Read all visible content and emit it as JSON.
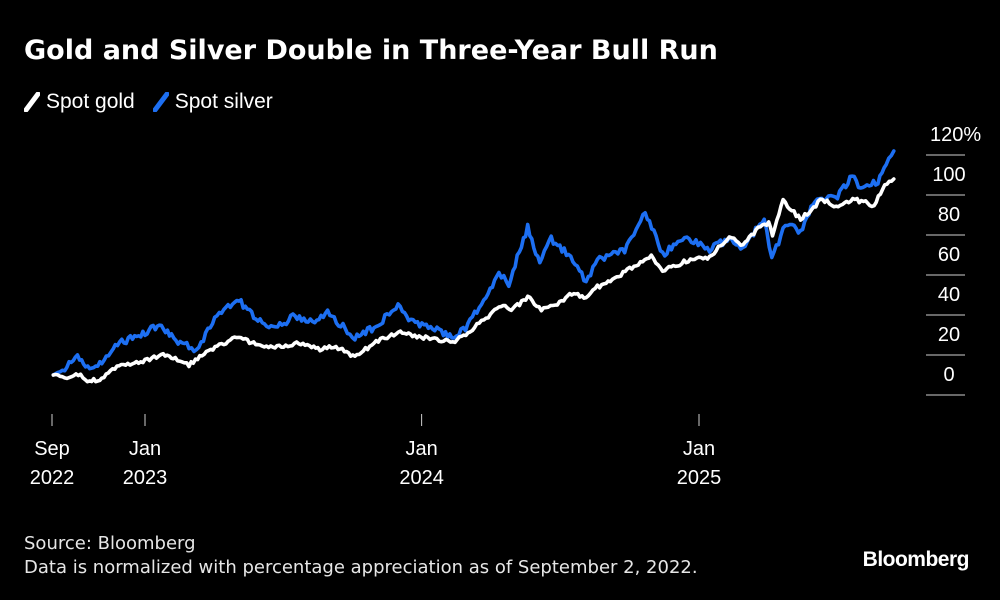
{
  "title": "Gold and Silver Double in Three-Year Bull Run",
  "legend": {
    "gold_label": "Spot gold",
    "silver_label": "Spot silver"
  },
  "colors": {
    "background": "#000000",
    "gold": "#ffffff",
    "silver": "#1d6ff2",
    "text": "#ffffff",
    "grid": "#cccccc"
  },
  "footer": {
    "source": "Source: Bloomberg",
    "note": "Data is normalized with percentage appreciation as of September 2, 2022."
  },
  "brand": "Bloomberg",
  "chart_data": {
    "type": "line",
    "title": "Gold and Silver Double in Three-Year Bull Run",
    "y_axis_position": "right",
    "ylim": [
      -10,
      120
    ],
    "y_ticks": [
      0,
      20,
      40,
      60,
      80,
      100,
      120
    ],
    "y_tick_labels": [
      "0",
      "20",
      "40",
      "60",
      "80",
      "100",
      "120%"
    ],
    "xlim": [
      "2022-09-02",
      "2025-09-20"
    ],
    "x_ticks": [
      {
        "date": "2022-09-02",
        "label": [
          "Sep",
          "2022"
        ]
      },
      {
        "date": "2023-01-01",
        "label": [
          "Jan",
          "2023"
        ]
      },
      {
        "date": "2024-01-01",
        "label": [
          "Jan",
          "2024"
        ]
      },
      {
        "date": "2025-01-01",
        "label": [
          "Jan",
          "2025"
        ]
      }
    ],
    "legend_position": "top-left",
    "grid": false,
    "series": [
      {
        "name": "Spot gold",
        "color": "#ffffff",
        "points": [
          [
            "2022-09-02",
            0
          ],
          [
            "2022-09-20",
            -2
          ],
          [
            "2022-10-05",
            0
          ],
          [
            "2022-10-20",
            -3
          ],
          [
            "2022-11-05",
            -2
          ],
          [
            "2022-11-25",
            4
          ],
          [
            "2022-12-15",
            6
          ],
          [
            "2023-01-01",
            7
          ],
          [
            "2023-01-25",
            10
          ],
          [
            "2023-02-10",
            8
          ],
          [
            "2023-02-28",
            5
          ],
          [
            "2023-03-20",
            11
          ],
          [
            "2023-04-15",
            16
          ],
          [
            "2023-05-05",
            19
          ],
          [
            "2023-05-30",
            15
          ],
          [
            "2023-06-30",
            14
          ],
          [
            "2023-07-20",
            16
          ],
          [
            "2023-08-20",
            13
          ],
          [
            "2023-09-10",
            14
          ],
          [
            "2023-10-05",
            9
          ],
          [
            "2023-10-30",
            16
          ],
          [
            "2023-12-04",
            22
          ],
          [
            "2023-12-20",
            20
          ],
          [
            "2024-01-15",
            18
          ],
          [
            "2024-02-14",
            17
          ],
          [
            "2024-03-08",
            23
          ],
          [
            "2024-04-01",
            30
          ],
          [
            "2024-04-12",
            35
          ],
          [
            "2024-05-01",
            33
          ],
          [
            "2024-05-20",
            39
          ],
          [
            "2024-06-07",
            33
          ],
          [
            "2024-07-01",
            36
          ],
          [
            "2024-07-17",
            41
          ],
          [
            "2024-08-05",
            38
          ],
          [
            "2024-08-20",
            44
          ],
          [
            "2024-09-20",
            50
          ],
          [
            "2024-10-30",
            60
          ],
          [
            "2024-11-14",
            52
          ],
          [
            "2024-12-15",
            57
          ],
          [
            "2025-01-15",
            59
          ],
          [
            "2025-02-10",
            69
          ],
          [
            "2025-02-28",
            65
          ],
          [
            "2025-03-20",
            73
          ],
          [
            "2025-04-03",
            76
          ],
          [
            "2025-04-08",
            70
          ],
          [
            "2025-04-22",
            87
          ],
          [
            "2025-05-15",
            78
          ],
          [
            "2025-06-13",
            88
          ],
          [
            "2025-07-01",
            84
          ],
          [
            "2025-07-23",
            88
          ],
          [
            "2025-08-20",
            85
          ],
          [
            "2025-09-03",
            95
          ],
          [
            "2025-09-15",
            98
          ]
        ]
      },
      {
        "name": "Spot silver",
        "color": "#1d6ff2",
        "points": [
          [
            "2022-09-02",
            0
          ],
          [
            "2022-09-20",
            4
          ],
          [
            "2022-10-04",
            10
          ],
          [
            "2022-10-20",
            2
          ],
          [
            "2022-11-05",
            6
          ],
          [
            "2022-11-20",
            14
          ],
          [
            "2022-12-10",
            18
          ],
          [
            "2023-01-01",
            21
          ],
          [
            "2023-01-20",
            25
          ],
          [
            "2023-02-05",
            19
          ],
          [
            "2023-02-28",
            14
          ],
          [
            "2023-03-10",
            12
          ],
          [
            "2023-03-31",
            26
          ],
          [
            "2023-04-15",
            34
          ],
          [
            "2023-05-05",
            37
          ],
          [
            "2023-05-30",
            27
          ],
          [
            "2023-06-25",
            24
          ],
          [
            "2023-07-18",
            30
          ],
          [
            "2023-08-10",
            26
          ],
          [
            "2023-08-30",
            31
          ],
          [
            "2023-09-25",
            22
          ],
          [
            "2023-10-05",
            18
          ],
          [
            "2023-10-30",
            24
          ],
          [
            "2023-12-01",
            34
          ],
          [
            "2023-12-15",
            28
          ],
          [
            "2024-01-10",
            24
          ],
          [
            "2024-02-10",
            19
          ],
          [
            "2024-02-28",
            23
          ],
          [
            "2024-03-20",
            36
          ],
          [
            "2024-04-12",
            50
          ],
          [
            "2024-04-25",
            46
          ],
          [
            "2024-05-20",
            74
          ],
          [
            "2024-06-05",
            56
          ],
          [
            "2024-06-20",
            68
          ],
          [
            "2024-07-10",
            61
          ],
          [
            "2024-08-05",
            47
          ],
          [
            "2024-08-20",
            58
          ],
          [
            "2024-09-25",
            62
          ],
          [
            "2024-10-22",
            82
          ],
          [
            "2024-11-14",
            60
          ],
          [
            "2024-12-10",
            69
          ],
          [
            "2025-01-15",
            63
          ],
          [
            "2025-02-10",
            68
          ],
          [
            "2025-02-28",
            64
          ],
          [
            "2025-03-28",
            78
          ],
          [
            "2025-04-07",
            58
          ],
          [
            "2025-04-25",
            75
          ],
          [
            "2025-05-15",
            72
          ],
          [
            "2025-06-06",
            89
          ],
          [
            "2025-06-30",
            88
          ],
          [
            "2025-07-22",
            99
          ],
          [
            "2025-08-05",
            92
          ],
          [
            "2025-08-25",
            97
          ],
          [
            "2025-09-05",
            104
          ],
          [
            "2025-09-15",
            112
          ]
        ]
      }
    ]
  }
}
